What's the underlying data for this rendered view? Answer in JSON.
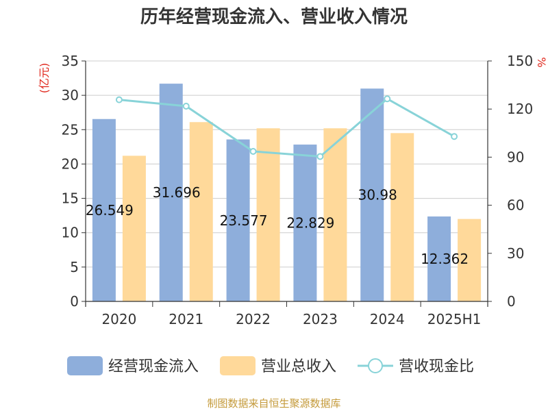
{
  "title": "历年经营现金流入、营业收入情况",
  "source": "制图数据来自恒生聚源数据库",
  "colors": {
    "cash_inflow": "#8eaedb",
    "revenue": "#ffd99a",
    "ratio_line": "#88d3d8",
    "axis": "#333333",
    "grid": "#cccccc",
    "unit": "#e0261b",
    "source": "#c49a3a"
  },
  "chart_data": {
    "type": "bar",
    "title": "历年经营现金流入、营业收入情况",
    "categories": [
      "2020",
      "2021",
      "2022",
      "2023",
      "2024",
      "2025H1"
    ],
    "y_left": {
      "unit": "(亿元)",
      "ylim": [
        0,
        35
      ],
      "ticks": [
        "0",
        "5",
        "10",
        "15",
        "20",
        "25",
        "30",
        "35"
      ]
    },
    "y_right": {
      "unit": "%",
      "ylim": [
        0,
        150
      ],
      "ticks": [
        "0",
        "30",
        "60",
        "90",
        "120",
        "150"
      ]
    },
    "series": [
      {
        "name": "经营现金流入",
        "type": "bar",
        "axis": "left",
        "values": [
          26.549,
          31.696,
          23.577,
          22.829,
          30.98,
          12.362
        ]
      },
      {
        "name": "营业总收入",
        "type": "bar",
        "axis": "left",
        "values": [
          21.2,
          26.1,
          25.2,
          25.2,
          24.5,
          12.0
        ]
      },
      {
        "name": "营收现金比",
        "type": "line",
        "axis": "right",
        "values": [
          125.8,
          121.8,
          93.6,
          90.4,
          126.4,
          102.9
        ]
      }
    ],
    "data_labels": [
      "26.549",
      "31.696",
      "23.577",
      "22.829",
      "30.98",
      "12.362"
    ],
    "grid": true,
    "legend_position": "bottom"
  }
}
